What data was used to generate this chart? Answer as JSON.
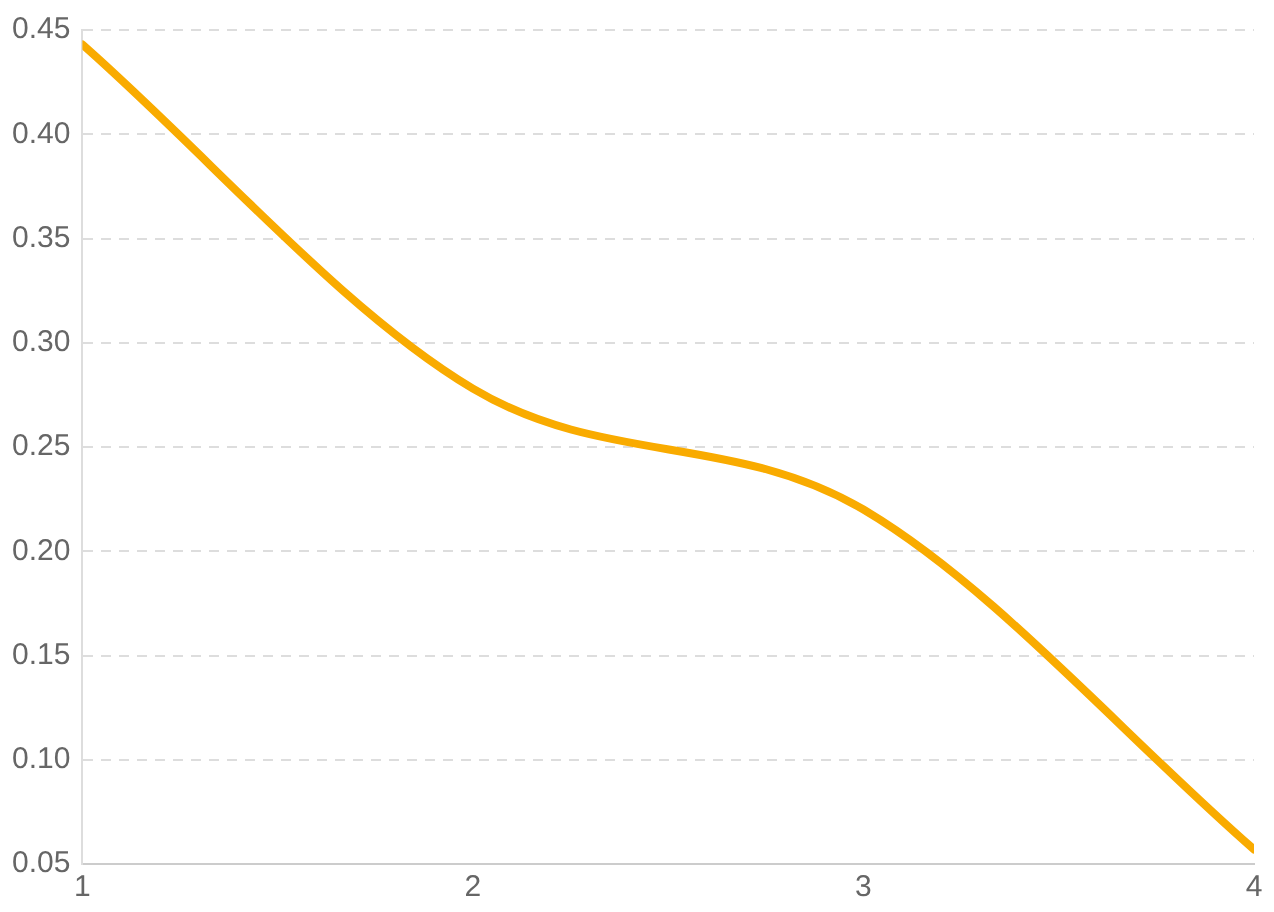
{
  "chart_data": {
    "type": "line",
    "x": [
      1,
      2,
      3,
      4
    ],
    "series": [
      {
        "color": "#f9ab00",
        "values": [
          0.443,
          0.278,
          0.22,
          0.057
        ]
      }
    ],
    "xlim": [
      1,
      4
    ],
    "xticks": [
      1,
      2,
      3,
      4
    ],
    "ylim": [
      0.05,
      0.45
    ],
    "yticks": [
      {
        "value": 0.05,
        "label": "0.05"
      },
      {
        "value": 0.1,
        "label": "0.10"
      },
      {
        "value": 0.15,
        "label": "0.15"
      },
      {
        "value": 0.2,
        "label": "0.20"
      },
      {
        "value": 0.25,
        "label": "0.25"
      },
      {
        "value": 0.3,
        "label": "0.30"
      },
      {
        "value": 0.35,
        "label": "0.35"
      },
      {
        "value": 0.4,
        "label": "0.40"
      },
      {
        "value": 0.45,
        "label": "0.45"
      }
    ],
    "grid": "y",
    "legend": false,
    "marker": "none",
    "line_style": "solid"
  }
}
